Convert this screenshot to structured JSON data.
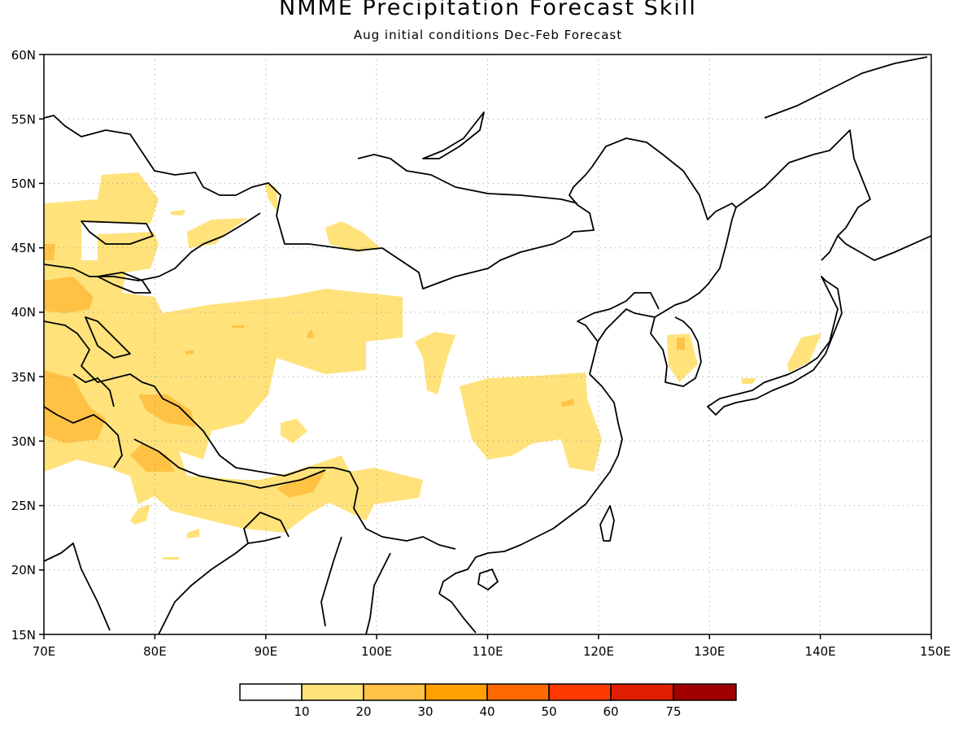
{
  "title": "NMME Precipitation Forecast Skill",
  "subtitle": "Aug initial conditions  Dec-Feb Forecast",
  "map": {
    "lon_range": [
      70,
      150
    ],
    "lat_range": [
      15,
      60
    ],
    "lon_ticks": [
      "70E",
      "80E",
      "90E",
      "100E",
      "110E",
      "120E",
      "130E",
      "140E",
      "150E"
    ],
    "lat_ticks": [
      "15N",
      "20N",
      "25N",
      "30N",
      "35N",
      "40N",
      "45N",
      "50N",
      "55N",
      "60N"
    ],
    "grid": "dotted"
  },
  "colorbar": {
    "labels": [
      "10",
      "20",
      "30",
      "40",
      "50",
      "60",
      "75"
    ],
    "colors": [
      "#ffffff",
      "#ffe27a",
      "#ffc244",
      "#ffa000",
      "#ff6a00",
      "#ff3a00",
      "#e01e00",
      "#a00000"
    ]
  }
}
